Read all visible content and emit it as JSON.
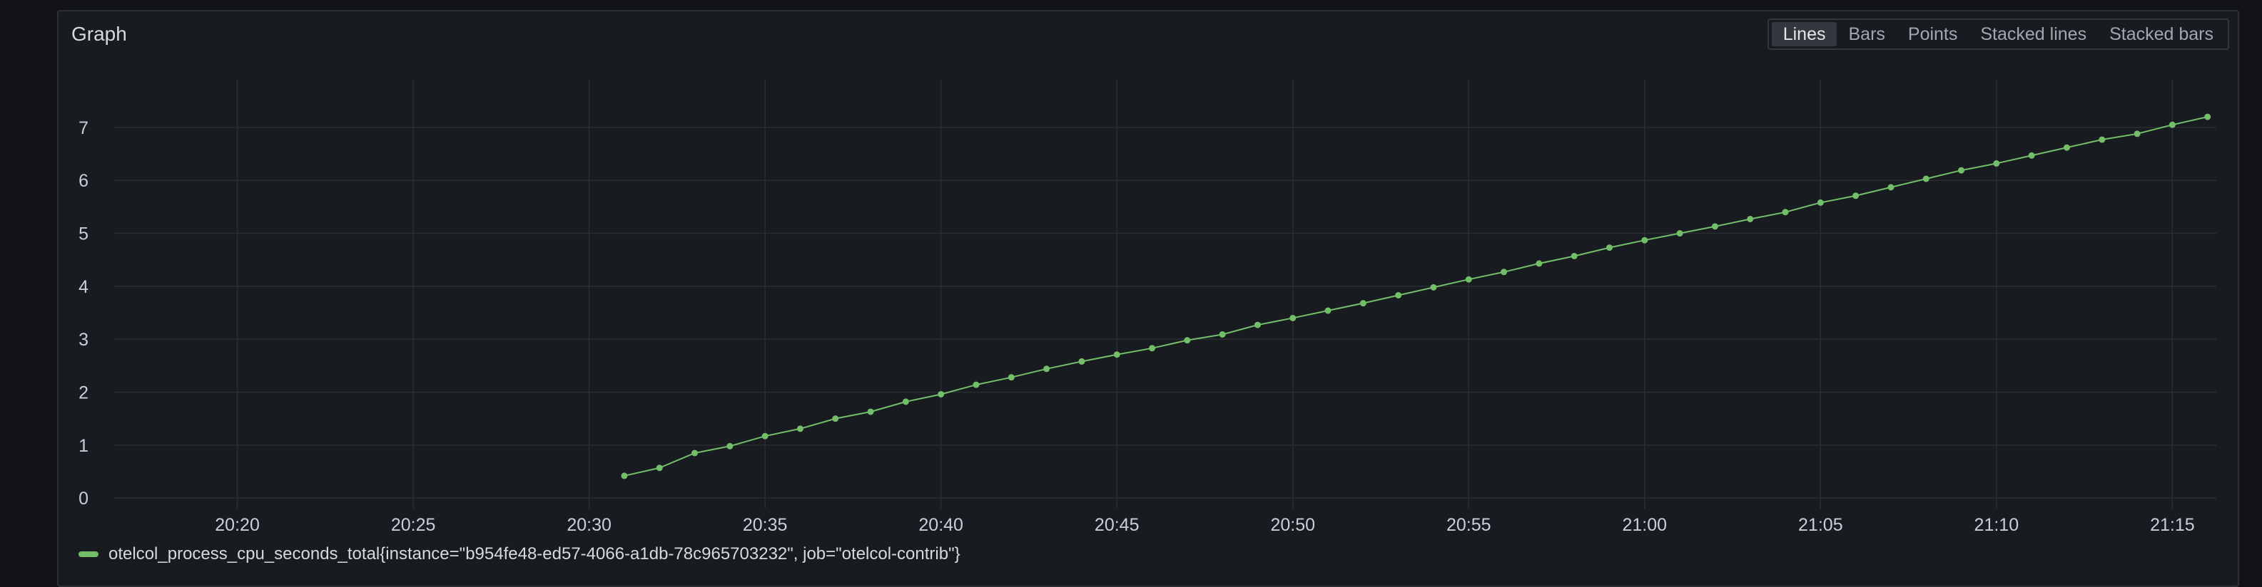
{
  "panel": {
    "title": "Graph",
    "modes": [
      "Lines",
      "Bars",
      "Points",
      "Stacked lines",
      "Stacked bars"
    ],
    "active_mode": "Lines"
  },
  "colors": {
    "series": "#73bf69",
    "grid": "#2a2d33",
    "text": "#ccccdc"
  },
  "chart_data": {
    "type": "line",
    "title": "",
    "xlabel": "",
    "ylabel": "",
    "x_ticks": [
      "20:20",
      "20:25",
      "20:30",
      "20:35",
      "20:40",
      "20:45",
      "20:50",
      "20:55",
      "21:00",
      "21:05",
      "21:10",
      "21:15"
    ],
    "y_ticks": [
      0,
      1,
      2,
      3,
      4,
      5,
      6,
      7
    ],
    "xlim": [
      "20:16:30",
      "21:16:15"
    ],
    "ylim": [
      -0.2,
      7.9
    ],
    "grid": true,
    "legend": "bottom-left",
    "series": [
      {
        "name": "otelcol_process_cpu_seconds_total{instance=\"b954fe48-ed57-4066-a1db-78c965703232\", job=\"otelcol-contrib\"}",
        "x": [
          "20:31",
          "20:32",
          "20:33",
          "20:34",
          "20:35",
          "20:36",
          "20:37",
          "20:38",
          "20:39",
          "20:40",
          "20:41",
          "20:42",
          "20:43",
          "20:44",
          "20:45",
          "20:46",
          "20:47",
          "20:48",
          "20:49",
          "20:50",
          "20:51",
          "20:52",
          "20:53",
          "20:54",
          "20:55",
          "20:56",
          "20:57",
          "20:58",
          "20:59",
          "21:00",
          "21:01",
          "21:02",
          "21:03",
          "21:04",
          "21:05",
          "21:06",
          "21:07",
          "21:08",
          "21:09",
          "21:10",
          "21:11",
          "21:12",
          "21:13",
          "21:14",
          "21:15",
          "21:16"
        ],
        "values": [
          0.42,
          0.57,
          0.85,
          0.98,
          1.17,
          1.31,
          1.5,
          1.63,
          1.82,
          1.96,
          2.14,
          2.28,
          2.44,
          2.58,
          2.71,
          2.83,
          2.98,
          3.09,
          3.27,
          3.4,
          3.54,
          3.68,
          3.83,
          3.98,
          4.13,
          4.27,
          4.43,
          4.57,
          4.73,
          4.87,
          5.0,
          5.13,
          5.27,
          5.4,
          5.58,
          5.71,
          5.87,
          6.03,
          6.19,
          6.32,
          6.47,
          6.62,
          6.77,
          6.88,
          7.05,
          7.2
        ]
      }
    ]
  }
}
